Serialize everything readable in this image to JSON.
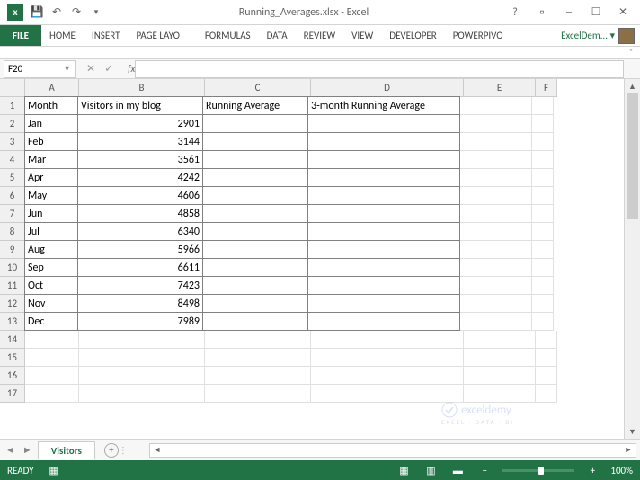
{
  "titlebar": {
    "filename": "Running_Averages.xlsx - Excel"
  },
  "ribbon": {
    "file": "FILE",
    "tabs": [
      "HOME",
      "INSERT",
      "PAGE LAYO",
      "FORMULAS",
      "DATA",
      "REVIEW",
      "VIEW",
      "DEVELOPER",
      "POWERPIVO"
    ],
    "user": "ExcelDem..."
  },
  "namebox": {
    "ref": "F20"
  },
  "columns": [
    {
      "label": "A",
      "width": 60
    },
    {
      "label": "B",
      "width": 140
    },
    {
      "label": "C",
      "width": 118
    },
    {
      "label": "D",
      "width": 170
    },
    {
      "label": "E",
      "width": 80
    },
    {
      "label": "F",
      "width": 24
    }
  ],
  "headers": {
    "A": "Month",
    "B": "Visitors in my blog",
    "C": "Running Average",
    "D": "3-month Running Average"
  },
  "rows": [
    {
      "month": "Jan",
      "visitors": "2901"
    },
    {
      "month": "Feb",
      "visitors": "3144"
    },
    {
      "month": "Mar",
      "visitors": "3561"
    },
    {
      "month": "Apr",
      "visitors": "4242"
    },
    {
      "month": "May",
      "visitors": "4606"
    },
    {
      "month": "Jun",
      "visitors": "4858"
    },
    {
      "month": "Jul",
      "visitors": "6340"
    },
    {
      "month": "Aug",
      "visitors": "5966"
    },
    {
      "month": "Sep",
      "visitors": "6611"
    },
    {
      "month": "Oct",
      "visitors": "7423"
    },
    {
      "month": "Nov",
      "visitors": "8498"
    },
    {
      "month": "Dec",
      "visitors": "7989"
    }
  ],
  "sheet": {
    "active": "Visitors"
  },
  "status": {
    "ready": "READY",
    "zoom": "100%"
  },
  "watermark": {
    "main": "exceldemy",
    "sub": "EXCEL · DATA · BI"
  },
  "colors": {
    "excel_green": "#217346",
    "grid_border": "#e0e0e0",
    "data_border": "#808080",
    "header_bg": "#f0f0f0"
  }
}
